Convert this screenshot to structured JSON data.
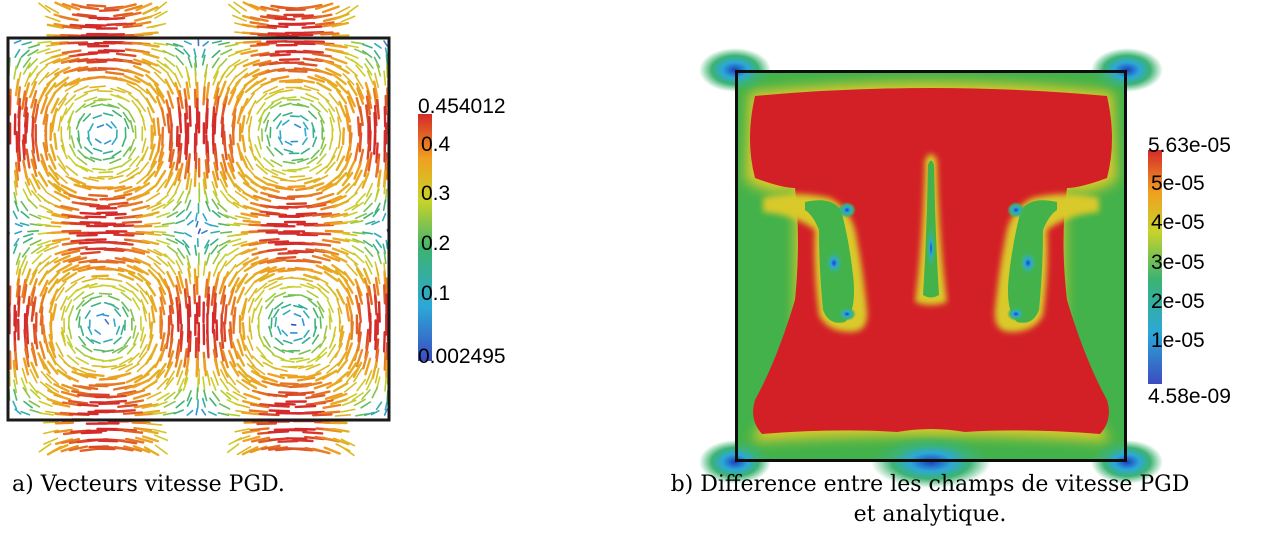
{
  "figure_a": {
    "caption": "a) Vecteurs vitesse PGD.",
    "colorbar": {
      "max_label": "0.454012",
      "min_label": "0.002495",
      "ticks": [
        "0.4",
        "0.3",
        "0.2",
        "0.1"
      ],
      "range": [
        0.002495,
        0.454012
      ]
    }
  },
  "figure_b": {
    "caption_line1": "b) Difference entre les champs de vitesse PGD",
    "caption_line2": "et analytique.",
    "colorbar": {
      "max_label": "5.63e-05",
      "min_label": "4.58e-09",
      "ticks": [
        "5e-05",
        "4e-05",
        "3e-05",
        "2e-05",
        "1e-05"
      ],
      "range": [
        4.58e-09,
        5.63e-05
      ]
    }
  },
  "colors": {
    "colormap": [
      "#3b4cc0",
      "#2ca8d8",
      "#3cb371",
      "#c8d32a",
      "#f0a020",
      "#d52a2a"
    ],
    "background_red": "#d32027",
    "frame": "#1a1a1a"
  }
}
